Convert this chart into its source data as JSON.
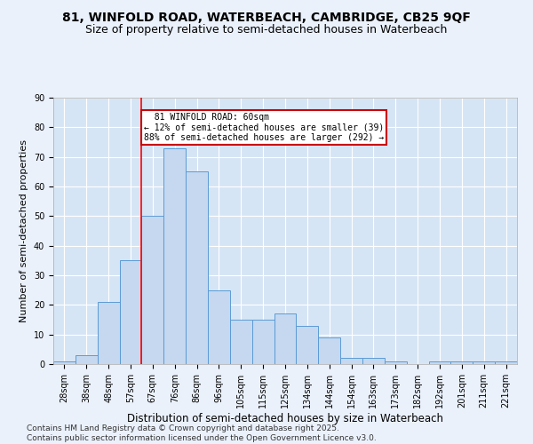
{
  "title1": "81, WINFOLD ROAD, WATERBEACH, CAMBRIDGE, CB25 9QF",
  "title2": "Size of property relative to semi-detached houses in Waterbeach",
  "xlabel": "Distribution of semi-detached houses by size in Waterbeach",
  "ylabel": "Number of semi-detached properties",
  "categories": [
    "28sqm",
    "38sqm",
    "48sqm",
    "57sqm",
    "67sqm",
    "76sqm",
    "86sqm",
    "96sqm",
    "105sqm",
    "115sqm",
    "125sqm",
    "134sqm",
    "144sqm",
    "154sqm",
    "163sqm",
    "173sqm",
    "182sqm",
    "192sqm",
    "201sqm",
    "211sqm",
    "221sqm"
  ],
  "values": [
    1,
    3,
    21,
    35,
    50,
    73,
    65,
    25,
    15,
    15,
    17,
    13,
    9,
    2,
    2,
    1,
    0,
    1,
    1,
    1,
    1
  ],
  "bar_color": "#c5d8f0",
  "bar_edge_color": "#5b9bd5",
  "property_label": "81 WINFOLD ROAD: 60sqm",
  "pct_smaller": 12,
  "pct_larger": 88,
  "count_smaller": 39,
  "count_larger": 292,
  "vline_bar_index": 3.5,
  "ylim": [
    0,
    90
  ],
  "yticks": [
    0,
    10,
    20,
    30,
    40,
    50,
    60,
    70,
    80,
    90
  ],
  "bg_color": "#eaf1fb",
  "plot_bg": "#d6e5f5",
  "grid_color": "#ffffff",
  "footer": "Contains HM Land Registry data © Crown copyright and database right 2025.\nContains public sector information licensed under the Open Government Licence v3.0.",
  "annotation_box_color": "#cc0000",
  "title1_fontsize": 10,
  "title2_fontsize": 9,
  "xlabel_fontsize": 8.5,
  "ylabel_fontsize": 8,
  "tick_fontsize": 7,
  "footer_fontsize": 6.5,
  "ann_fontsize": 7
}
